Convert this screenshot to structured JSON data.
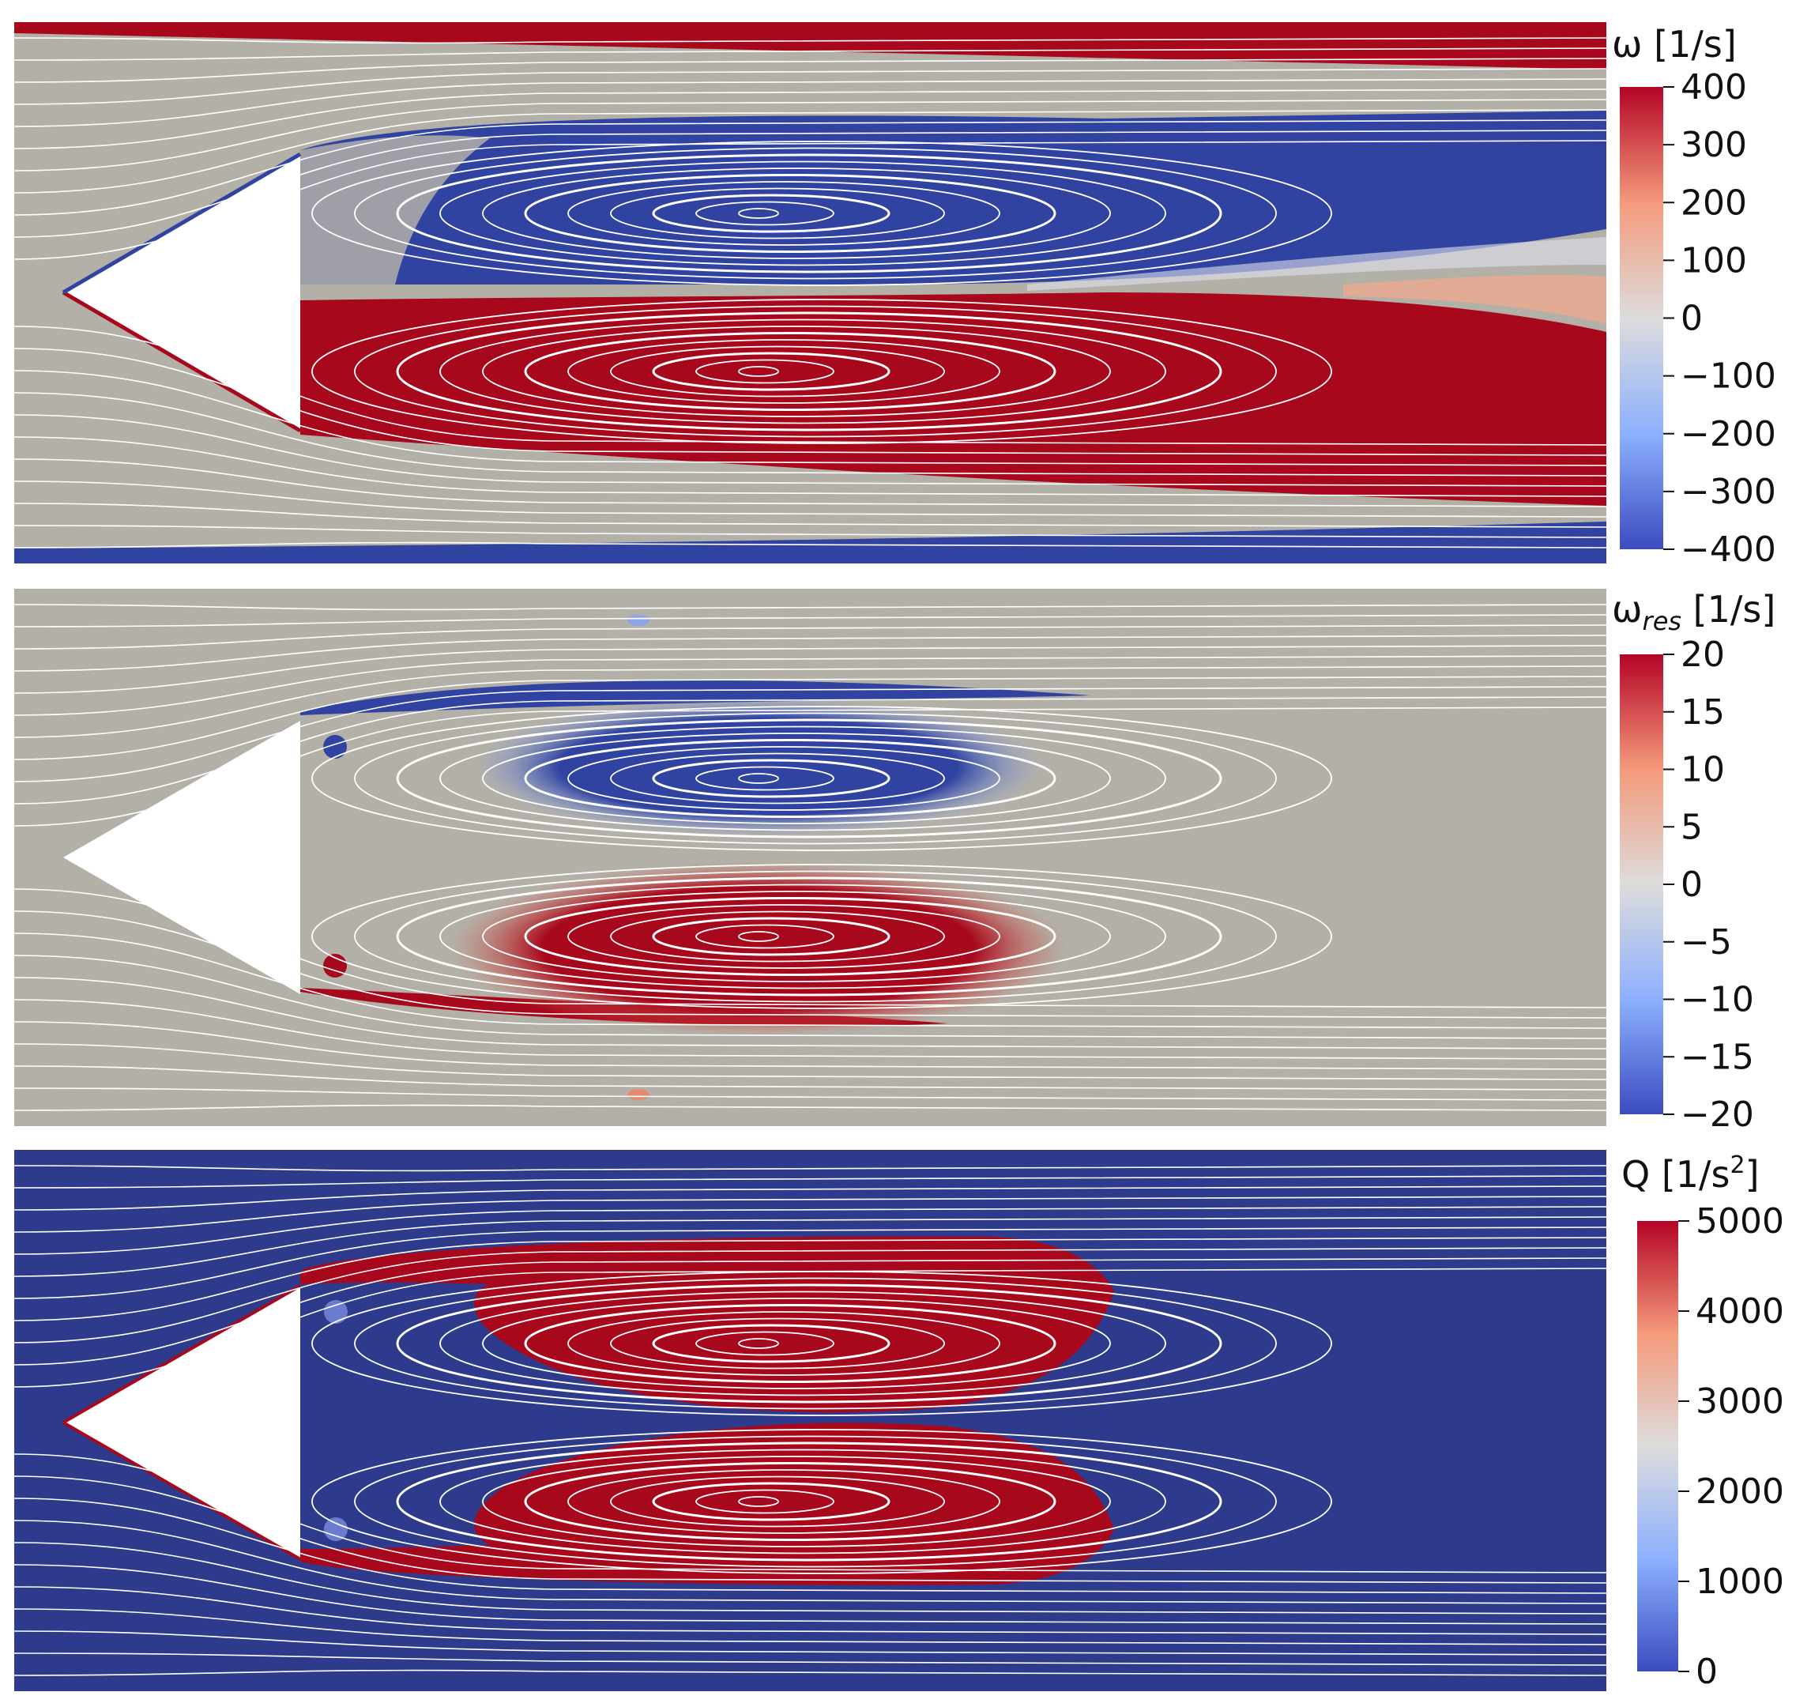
{
  "panels": [
    {
      "label": "ω [1/s]",
      "label_symbol": "ω",
      "label_unit": " [1/s]",
      "colorbar": {
        "ticks": [
          "400",
          "300",
          "200",
          "100",
          "0",
          "−100",
          "−200",
          "−300",
          "−400"
        ]
      },
      "background": "#b3b0a8"
    },
    {
      "label": "ωres [1/s]",
      "label_symbol": "ω",
      "label_sub": "res",
      "label_unit": " [1/s]",
      "colorbar": {
        "ticks": [
          "20",
          "15",
          "10",
          "5",
          "0",
          "−5",
          "−10",
          "−15",
          "−20"
        ]
      },
      "background": "#b3b0a8"
    },
    {
      "label": "Q [1/s2]",
      "label_symbol": "Q",
      "label_unit": " [1/s",
      "label_sup": "2",
      "label_close": "]",
      "colorbar": {
        "ticks": [
          "5000",
          "4000",
          "3000",
          "2000",
          "1000",
          "0"
        ]
      },
      "background": "#2e3b8c"
    }
  ],
  "colors": {
    "red": "#a8081c",
    "blue": "#3043a0",
    "neutral": "#b3b0a8",
    "streamline": "#ffffff"
  }
}
